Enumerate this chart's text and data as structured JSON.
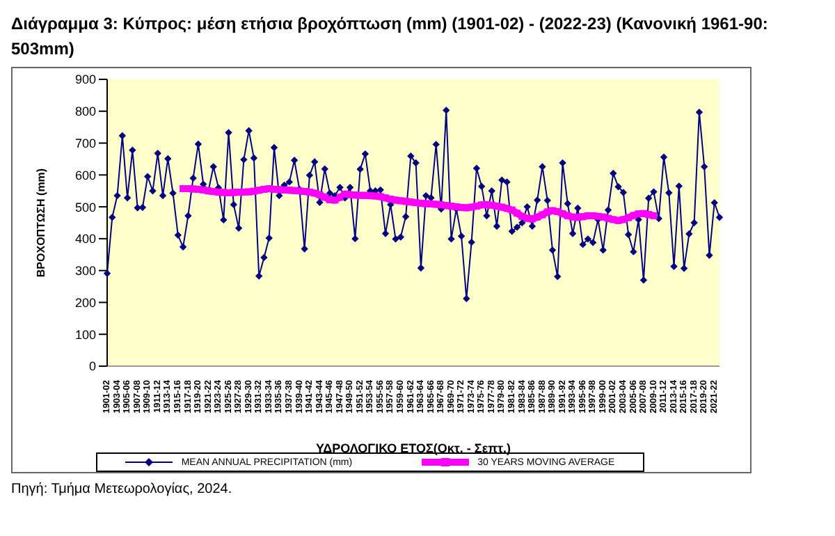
{
  "chart_data": {
    "type": "line",
    "title": "Διάγραμμα 3: Κύπρος: μέση ετήσια βροχόπτωση (mm) (1901-02) - (2022-23) (Κανονική 1961-90: 503mm)",
    "xlabel": "ΥΔΡΟΛΟΓΙΚΟ ΕΤΟΣ(Οκτ. - Σεπτ.)",
    "ylabel": "ΒΡΟΧΟΠΤΩΣΗ (mm)",
    "annotations": [
      "Πηγή: Τμήμα Μετεωρολογίας, 2024."
    ],
    "categories": [
      "1901-02",
      null,
      "1903-04",
      null,
      "1905-06",
      null,
      "1907-08",
      null,
      "1909-10",
      null,
      "1911-12",
      null,
      "1913-14",
      null,
      "1915-16",
      null,
      "1917-18",
      null,
      "1919-20",
      null,
      "1921-22",
      null,
      "1923-24",
      null,
      "1925-26",
      null,
      "1927-28",
      null,
      "1929-30",
      null,
      "1931-32",
      null,
      "1933-34",
      null,
      "1935-36",
      null,
      "1937-38",
      null,
      "1939-40",
      null,
      "1941-42",
      null,
      "1943-44",
      null,
      "1945-46",
      null,
      "1947-48",
      null,
      "1949-50",
      null,
      "1951-52",
      null,
      "1953-54",
      null,
      "1955-56",
      null,
      "1957-58",
      null,
      "1959-60",
      null,
      "1961-62",
      null,
      "1963-64",
      null,
      "1965-66",
      null,
      "1967-68",
      null,
      "1969-70",
      null,
      "1971-72",
      null,
      "1973-74",
      null,
      "1975-76",
      null,
      "1977-78",
      null,
      "1979-80",
      null,
      "1981-82",
      null,
      "1983-84",
      null,
      "1985-86",
      null,
      "1987-88",
      null,
      "1989-90",
      null,
      "1991-92",
      null,
      "1993-94",
      null,
      "1995-96",
      null,
      "1997-98",
      null,
      "1999-00",
      null,
      "2001-02",
      null,
      "2003-04",
      null,
      "2005-06",
      null,
      "2007-08",
      null,
      "2009-10",
      null,
      "2011-12",
      null,
      "2013-14",
      null,
      "2015-16",
      null,
      "2017-18",
      null,
      "2019-20",
      null,
      "2021-22",
      null
    ],
    "series": [
      {
        "name": "MEAN ANNUAL PRECIPITATION (mm)",
        "color": "#000080",
        "marker": "diamond",
        "values": [
          291,
          467,
          535,
          723,
          528,
          678,
          497,
          498,
          595,
          550,
          668,
          535,
          651,
          543,
          411,
          374,
          472,
          590,
          697,
          571,
          550,
          626,
          560,
          459,
          733,
          507,
          433,
          648,
          739,
          653,
          283,
          341,
          402,
          686,
          535,
          568,
          578,
          646,
          555,
          368,
          599,
          641,
          514,
          619,
          543,
          535,
          561,
          528,
          561,
          400,
          618,
          666,
          550,
          550,
          553,
          416,
          507,
          399,
          405,
          469,
          659,
          638,
          308,
          535,
          528,
          696,
          493,
          803,
          399,
          493,
          408,
          212,
          389,
          621,
          564,
          472,
          550,
          439,
          584,
          578,
          423,
          436,
          450,
          500,
          439,
          521,
          626,
          520,
          364,
          281,
          638,
          510,
          416,
          496,
          382,
          399,
          388,
          460,
          364,
          490,
          605,
          563,
          545,
          413,
          359,
          460,
          270,
          527,
          547,
          463,
          656,
          544,
          313,
          565,
          307,
          415,
          450,
          797,
          626,
          348,
          513,
          467
        ]
      },
      {
        "name": "30 YEARS MOVING AVERAGE",
        "color": "#ff00ff",
        "marker": "square",
        "values": [
          null,
          null,
          null,
          null,
          null,
          null,
          null,
          null,
          null,
          null,
          null,
          null,
          null,
          null,
          null,
          557,
          557,
          556,
          555,
          553,
          550,
          548,
          546,
          545,
          544,
          545,
          546,
          546,
          547,
          549,
          552,
          555,
          557,
          555,
          554,
          553,
          552,
          551,
          550,
          548,
          546,
          543,
          538,
          530,
          522,
          521,
          530,
          540,
          538,
          537,
          536,
          536,
          535,
          534,
          532,
          528,
          524,
          521,
          519,
          517,
          515,
          513,
          511,
          510,
          509,
          508,
          506,
          504,
          502,
          500,
          498,
          497,
          499,
          502,
          506,
          507,
          505,
          502,
          499,
          495,
          490,
          480,
          470,
          464,
          462,
          468,
          475,
          484,
          488,
          485,
          478,
          472,
          468,
          467,
          469,
          472,
          472,
          470,
          468,
          464,
          460,
          457,
          460,
          466,
          473,
          478,
          479,
          476,
          472,
          null,
          null,
          null,
          null,
          null,
          null,
          null,
          null,
          null,
          null,
          null,
          null,
          null
        ]
      }
    ],
    "ylim": [
      0,
      900
    ],
    "yticks": [
      0,
      100,
      200,
      300,
      400,
      500,
      600,
      700,
      800,
      900
    ],
    "grid": false,
    "legend": "bottom"
  }
}
